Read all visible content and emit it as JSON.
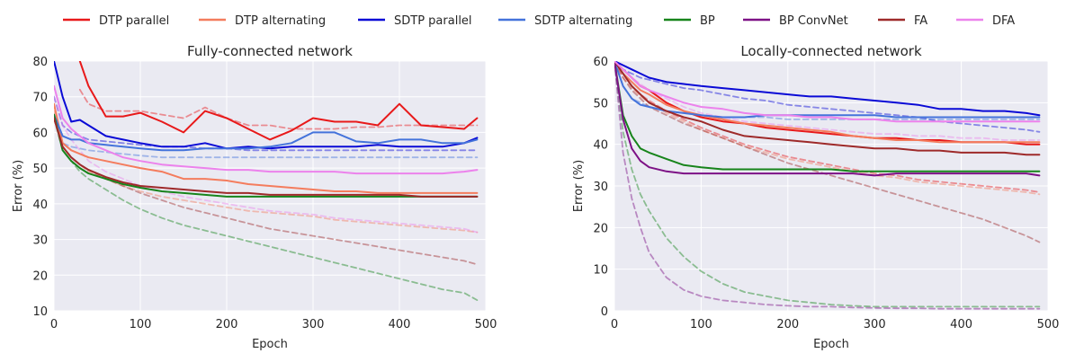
{
  "legend": {
    "placement": "top",
    "entries": [
      {
        "name": "DTP parallel",
        "color": "#e8191a"
      },
      {
        "name": "DTP alternating",
        "color": "#f47c5d"
      },
      {
        "name": "SDTP parallel",
        "color": "#0a0ad6"
      },
      {
        "name": "SDTP alternating",
        "color": "#4473db"
      },
      {
        "name": "BP",
        "color": "#17841b"
      },
      {
        "name": "BP ConvNet",
        "color": "#7d1186"
      },
      {
        "name": "FA",
        "color": "#9e2a2a"
      },
      {
        "name": "DFA",
        "color": "#ec82ec"
      }
    ]
  },
  "chart_data": [
    {
      "type": "line",
      "title": "Fully-connected network",
      "xlabel": "Epoch",
      "ylabel": "Error (%)",
      "xlim": [
        0,
        500
      ],
      "ylim": [
        10,
        80
      ],
      "xticks": [
        "0",
        "100",
        "200",
        "300",
        "400",
        "500"
      ],
      "yticks": [
        "10",
        "20",
        "30",
        "40",
        "50",
        "60",
        "70",
        "80"
      ],
      "grid": true,
      "x": [
        0,
        10,
        20,
        30,
        40,
        60,
        80,
        100,
        125,
        150,
        175,
        200,
        225,
        250,
        275,
        300,
        325,
        350,
        375,
        400,
        425,
        450,
        475,
        490
      ],
      "series": [
        {
          "name": "DTP parallel",
          "color": "#e8191a",
          "style": "solid",
          "values": [
            null,
            null,
            null,
            80,
            73,
            64.5,
            64.5,
            65.5,
            63,
            60,
            66,
            64,
            61,
            58,
            60.5,
            64,
            63,
            63,
            62,
            68,
            62,
            61.5,
            61,
            64
          ]
        },
        {
          "name": "DTP alternating",
          "color": "#f47c5d",
          "style": "solid",
          "values": [
            68,
            57,
            55,
            54,
            53,
            52,
            51,
            50,
            49,
            47,
            47,
            46.5,
            45.5,
            45,
            44.5,
            44,
            43.5,
            43.5,
            43,
            43,
            43,
            43,
            43,
            43
          ]
        },
        {
          "name": "SDTP parallel",
          "color": "#0a0ad6",
          "style": "solid",
          "values": [
            80,
            70,
            63,
            63.5,
            62,
            59,
            58,
            57,
            56,
            56,
            57,
            55.5,
            56,
            55.5,
            56,
            56,
            56,
            56,
            56.5,
            56,
            56,
            56,
            57,
            58.5
          ]
        },
        {
          "name": "SDTP alternating",
          "color": "#4473db",
          "style": "solid",
          "values": [
            65,
            59,
            58,
            58,
            57,
            56.5,
            56,
            55.5,
            55,
            55,
            55.5,
            55.5,
            55.5,
            56,
            57,
            60,
            60,
            57.5,
            57,
            58,
            58,
            57,
            57,
            58
          ]
        },
        {
          "name": "BP",
          "color": "#17841b",
          "style": "solid",
          "values": [
            65,
            55,
            52,
            50,
            48.5,
            47,
            45.5,
            44.5,
            43.5,
            43,
            42.5,
            42,
            42,
            42,
            42,
            42,
            42,
            42,
            42,
            42,
            42,
            42,
            42,
            42
          ]
        },
        {
          "name": "FA",
          "color": "#9e2a2a",
          "style": "solid",
          "values": [
            64,
            56,
            53,
            51,
            49.5,
            47.5,
            46,
            45,
            44.5,
            44,
            43.5,
            43,
            43,
            42.5,
            42.5,
            42.5,
            42.5,
            42.5,
            42.5,
            42.5,
            42,
            42,
            42,
            42
          ]
        },
        {
          "name": "DFA",
          "color": "#ec82ec",
          "style": "solid",
          "values": [
            73,
            64,
            61,
            59,
            57,
            55,
            53,
            52,
            51,
            50.5,
            50,
            49.5,
            49.5,
            49,
            49,
            49,
            49,
            48.5,
            48.5,
            48.5,
            48.5,
            48.5,
            49,
            49.5
          ]
        },
        {
          "name": "DTP parallel",
          "color": "#e8191a",
          "style": "dashed",
          "values": [
            null,
            null,
            null,
            72,
            68,
            66,
            66,
            66,
            65,
            64,
            67,
            64,
            62,
            62,
            61,
            61,
            61,
            61.5,
            61.5,
            62,
            62,
            62,
            62,
            62
          ]
        },
        {
          "name": "DTP alternating",
          "color": "#f47c5d",
          "style": "dashed",
          "values": [
            66,
            56,
            53,
            51,
            49,
            47,
            45,
            43.5,
            42,
            41,
            40,
            39,
            38,
            37.5,
            37,
            36.5,
            35.5,
            35,
            34.5,
            34,
            33.5,
            33,
            32.5,
            32
          ]
        },
        {
          "name": "SDTP parallel",
          "color": "#0a0ad6",
          "style": "dashed",
          "values": [
            70,
            62,
            60,
            59,
            58,
            57.5,
            57,
            56.5,
            56,
            56,
            55.5,
            55.5,
            55,
            55,
            55,
            55,
            55,
            55,
            55,
            55,
            55,
            55,
            55,
            55
          ]
        },
        {
          "name": "SDTP alternating",
          "color": "#4473db",
          "style": "dashed",
          "values": [
            64,
            57,
            56,
            55.5,
            55,
            54.5,
            54,
            53.5,
            53,
            53,
            53,
            53,
            53,
            53,
            53,
            53,
            53,
            53,
            53,
            53,
            53,
            53,
            53,
            53
          ]
        },
        {
          "name": "BP",
          "color": "#17841b",
          "style": "dashed",
          "values": [
            64,
            55,
            52,
            49,
            47,
            44,
            41,
            38.5,
            36,
            34,
            32.5,
            31,
            29.5,
            28,
            26.5,
            25,
            23.5,
            22,
            20.5,
            19,
            17.5,
            16,
            15,
            13
          ]
        },
        {
          "name": "FA",
          "color": "#9e2a2a",
          "style": "dashed",
          "values": [
            64,
            56,
            53,
            51,
            49.5,
            47,
            45,
            43,
            41,
            39,
            37.5,
            36,
            34.5,
            33,
            32,
            31,
            30,
            29,
            28,
            27,
            26,
            25,
            24,
            23
          ]
        },
        {
          "name": "DFA",
          "color": "#ec82ec",
          "style": "dashed",
          "values": [
            70,
            62,
            58,
            55,
            52,
            49,
            47,
            45,
            43.5,
            42,
            41,
            40,
            39,
            38,
            37.5,
            37,
            36,
            35.5,
            35,
            34.5,
            34,
            33.5,
            33,
            32
          ]
        }
      ]
    },
    {
      "type": "line",
      "title": "Locally-connected network",
      "xlabel": "Epoch",
      "ylabel": "Error (%)",
      "xlim": [
        0,
        500
      ],
      "ylim": [
        0,
        60
      ],
      "xticks": [
        "0",
        "100",
        "200",
        "300",
        "400",
        "500"
      ],
      "yticks": [
        "0",
        "10",
        "20",
        "30",
        "40",
        "50",
        "60"
      ],
      "grid": true,
      "x": [
        0,
        10,
        20,
        30,
        40,
        60,
        80,
        100,
        125,
        150,
        175,
        200,
        225,
        250,
        275,
        300,
        325,
        350,
        375,
        400,
        425,
        450,
        475,
        490
      ],
      "series": [
        {
          "name": "DTP parallel",
          "color": "#e8191a",
          "style": "solid",
          "values": [
            60,
            58,
            56,
            54,
            53,
            50,
            48,
            46.5,
            45.5,
            45,
            44,
            43.5,
            43,
            42.5,
            42,
            41.5,
            41.5,
            41,
            41,
            40.5,
            40.5,
            40.5,
            40,
            40
          ]
        },
        {
          "name": "DTP alternating",
          "color": "#f47c5d",
          "style": "solid",
          "values": [
            60,
            57,
            55,
            53,
            52,
            49.5,
            48,
            47,
            46,
            45,
            44.5,
            44,
            43.5,
            43,
            42,
            41.5,
            41,
            41,
            40.5,
            40.5,
            40.5,
            40.5,
            40.5,
            40.5
          ]
        },
        {
          "name": "SDTP parallel",
          "color": "#0a0ad6",
          "style": "solid",
          "values": [
            60,
            59,
            58,
            57,
            56,
            55,
            54.5,
            54,
            53.5,
            53,
            52.5,
            52,
            51.5,
            51.5,
            51,
            50.5,
            50,
            49.5,
            48.5,
            48.5,
            48,
            48,
            47.5,
            47
          ]
        },
        {
          "name": "SDTP alternating",
          "color": "#4473db",
          "style": "solid",
          "values": [
            60,
            54,
            51,
            49.5,
            49,
            48,
            47.5,
            47,
            46.5,
            46.5,
            47,
            47,
            47,
            47,
            47,
            47,
            46.5,
            46.5,
            46.5,
            46.5,
            46.5,
            46.5,
            46.5,
            46.5
          ]
        },
        {
          "name": "BP",
          "color": "#17841b",
          "style": "solid",
          "values": [
            60,
            47,
            42,
            39,
            38,
            36.5,
            35,
            34.5,
            34,
            34,
            34,
            34,
            34,
            34,
            33.5,
            33.5,
            33.5,
            33.5,
            33.5,
            33.5,
            33.5,
            33.5,
            33.5,
            33.5
          ]
        },
        {
          "name": "BP ConvNet",
          "color": "#7d1186",
          "style": "solid",
          "values": [
            60,
            46,
            39,
            36,
            34.5,
            33.5,
            33,
            33,
            33,
            33,
            33,
            33,
            33,
            33,
            33,
            32.5,
            33,
            33,
            33,
            33,
            33,
            33,
            33,
            32.5
          ]
        },
        {
          "name": "FA",
          "color": "#9e2a2a",
          "style": "solid",
          "values": [
            60,
            57,
            54,
            52,
            50,
            48,
            46.5,
            45.5,
            43.5,
            42,
            41.5,
            41,
            40.5,
            40,
            39.5,
            39,
            39,
            38.5,
            38.5,
            38,
            38,
            38,
            37.5,
            37.5
          ]
        },
        {
          "name": "DFA",
          "color": "#ec82ec",
          "style": "solid",
          "values": [
            60,
            58,
            56,
            54,
            53,
            51.5,
            50,
            49,
            48.5,
            47.5,
            47,
            47,
            46.5,
            46.5,
            46,
            46,
            45.5,
            45.5,
            45.5,
            45.5,
            45.5,
            45.5,
            45.5,
            45.5
          ]
        },
        {
          "name": "DTP parallel",
          "color": "#e8191a",
          "style": "dashed",
          "values": [
            60,
            57,
            54,
            52,
            50.5,
            48,
            46,
            44,
            42,
            40,
            38.5,
            37,
            36,
            35,
            34,
            33,
            32.5,
            31.5,
            31,
            30.5,
            30,
            29.5,
            29,
            28.5
          ]
        },
        {
          "name": "DTP alternating",
          "color": "#f47c5d",
          "style": "dashed",
          "values": [
            60,
            56,
            53.5,
            51.5,
            50,
            47.5,
            45.5,
            43.5,
            41.5,
            39.5,
            38,
            36.5,
            35.5,
            34.5,
            33.5,
            32.5,
            32,
            31,
            30.5,
            30,
            29.5,
            29,
            28.5,
            28
          ]
        },
        {
          "name": "SDTP parallel",
          "color": "#0a0ad6",
          "style": "dashed",
          "values": [
            60,
            58,
            57,
            56,
            55.5,
            54.5,
            53.5,
            53,
            52,
            51,
            50.5,
            49.5,
            49,
            48.5,
            48,
            47.5,
            47,
            46.5,
            45.5,
            45,
            44.5,
            44,
            43.5,
            43
          ]
        },
        {
          "name": "SDTP alternating",
          "color": "#4473db",
          "style": "dashed",
          "values": [
            60,
            54,
            51,
            50,
            49,
            48,
            47.5,
            47,
            46.5,
            46.5,
            46.5,
            46,
            46,
            46,
            46,
            46,
            46,
            46,
            46,
            46,
            46,
            46,
            46,
            46
          ]
        },
        {
          "name": "BP",
          "color": "#17841b",
          "style": "dashed",
          "values": [
            60,
            43,
            34,
            28,
            24,
            17.5,
            13,
            9.5,
            6.5,
            4.5,
            3.5,
            2.5,
            2,
            1.5,
            1.2,
            1,
            1,
            1,
            1,
            1,
            1,
            1,
            1,
            1
          ]
        },
        {
          "name": "BP ConvNet",
          "color": "#7d1186",
          "style": "dashed",
          "values": [
            60,
            38,
            27,
            20,
            14,
            8,
            5,
            3.5,
            2.5,
            2,
            1.5,
            1.2,
            1,
            1,
            0.8,
            0.7,
            0.6,
            0.6,
            0.5,
            0.5,
            0.5,
            0.5,
            0.5,
            0.5
          ]
        },
        {
          "name": "FA",
          "color": "#9e2a2a",
          "style": "dashed",
          "values": [
            60,
            56,
            53,
            51,
            49,
            47,
            45,
            43.5,
            41.5,
            39.5,
            37.5,
            35.5,
            34,
            32.5,
            31,
            29.5,
            28,
            26.5,
            25,
            23.5,
            22,
            20,
            18,
            16.5
          ]
        },
        {
          "name": "DFA",
          "color": "#ec82ec",
          "style": "dashed",
          "values": [
            60,
            58,
            56,
            54.5,
            53,
            51,
            49,
            47.5,
            46.5,
            45.5,
            45,
            44.5,
            44,
            43.5,
            43,
            42.5,
            42.5,
            42,
            42,
            41.5,
            41.5,
            41,
            41,
            41
          ]
        }
      ]
    }
  ]
}
